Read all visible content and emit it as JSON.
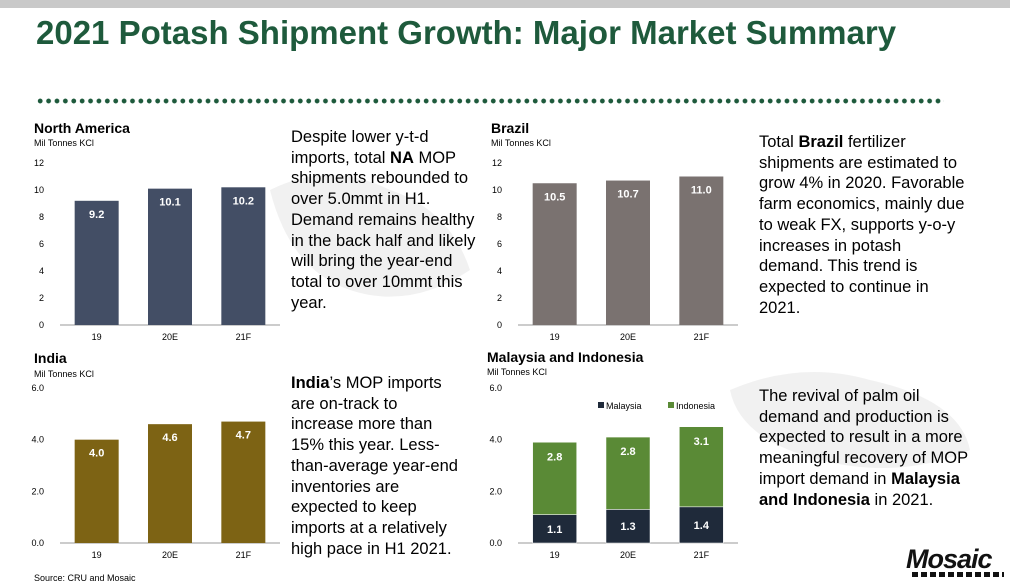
{
  "title": "2021 Potash Shipment Growth: Major Market Summary",
  "colors": {
    "title": "#1e5a3c",
    "na": "#434e65",
    "brazil": "#7a7270",
    "india": "#7d6314",
    "malaysia": "#1f2a3a",
    "indonesia": "#5a8a36"
  },
  "chart_data": [
    {
      "type": "bar",
      "title": "North America",
      "ylabel": "Mil Tonnes KCl",
      "categories": [
        "19",
        "20E",
        "21F"
      ],
      "values": [
        9.2,
        10.1,
        10.2
      ],
      "labels": [
        "9.2",
        "10.1",
        "10.2"
      ],
      "ylim": [
        0,
        12
      ],
      "ticks": [
        "0",
        "2",
        "4",
        "6",
        "8",
        "10",
        "12"
      ]
    },
    {
      "type": "bar",
      "title": "Brazil",
      "ylabel": "Mil Tonnes KCl",
      "categories": [
        "19",
        "20E",
        "21F"
      ],
      "values": [
        10.5,
        10.7,
        11.0
      ],
      "labels": [
        "10.5",
        "10.7",
        "11.0"
      ],
      "ylim": [
        0,
        12
      ],
      "ticks": [
        "0",
        "2",
        "4",
        "6",
        "8",
        "10",
        "12"
      ]
    },
    {
      "type": "bar",
      "title": "India",
      "ylabel": "Mil Tonnes KCl",
      "categories": [
        "19",
        "20E",
        "21F"
      ],
      "values": [
        4.0,
        4.6,
        4.7
      ],
      "labels": [
        "4.0",
        "4.6",
        "4.7"
      ],
      "ylim": [
        0,
        6
      ],
      "ticks": [
        "0.0",
        "2.0",
        "4.0",
        "6.0"
      ]
    },
    {
      "type": "bar",
      "stacked": true,
      "title": "Malaysia and Indonesia",
      "ylabel": "Mil Tonnes KCl",
      "categories": [
        "19",
        "20E",
        "21F"
      ],
      "ylim": [
        0,
        6
      ],
      "ticks": [
        "0.0",
        "2.0",
        "4.0",
        "6.0"
      ],
      "legend": "top-right",
      "series": [
        {
          "name": "Malaysia",
          "values": [
            1.1,
            1.3,
            1.4
          ],
          "labels": [
            "1.1",
            "1.3",
            "1.4"
          ]
        },
        {
          "name": "Indonesia",
          "values": [
            2.8,
            2.8,
            3.1
          ],
          "labels": [
            "2.8",
            "2.8",
            "3.1"
          ]
        }
      ]
    }
  ],
  "text": {
    "na": {
      "p1": "Despite lower y-t-d imports, total ",
      "bold": "NA",
      "p2": " MOP shipments rebounded to over 5.0mmt in H1. Demand remains healthy in the back half and likely will bring the year-end total to over 10mmt this year."
    },
    "brazil": {
      "p1": "Total ",
      "bold": "Brazil",
      "p2": " fertilizer shipments are estimated to grow 4% in 2020. Favorable farm economics, mainly due to weak FX, supports y-o-y increases in potash demand.  This trend is expected to continue in 2021."
    },
    "india": {
      "bold": "India",
      "p2": "’s MOP imports are on-track to increase more than 15% this year. Less-than-average year-end inventories are expected to keep imports at a relatively high pace in H1 2021."
    },
    "malaysia": {
      "p1": "The revival of palm oil demand and production is expected to result in a more meaningful recovery of MOP import demand in ",
      "bold": "Malaysia and Indonesia",
      "p2": " in 2021."
    }
  },
  "source": "Source: CRU and Mosaic",
  "logo": "Mosaic"
}
